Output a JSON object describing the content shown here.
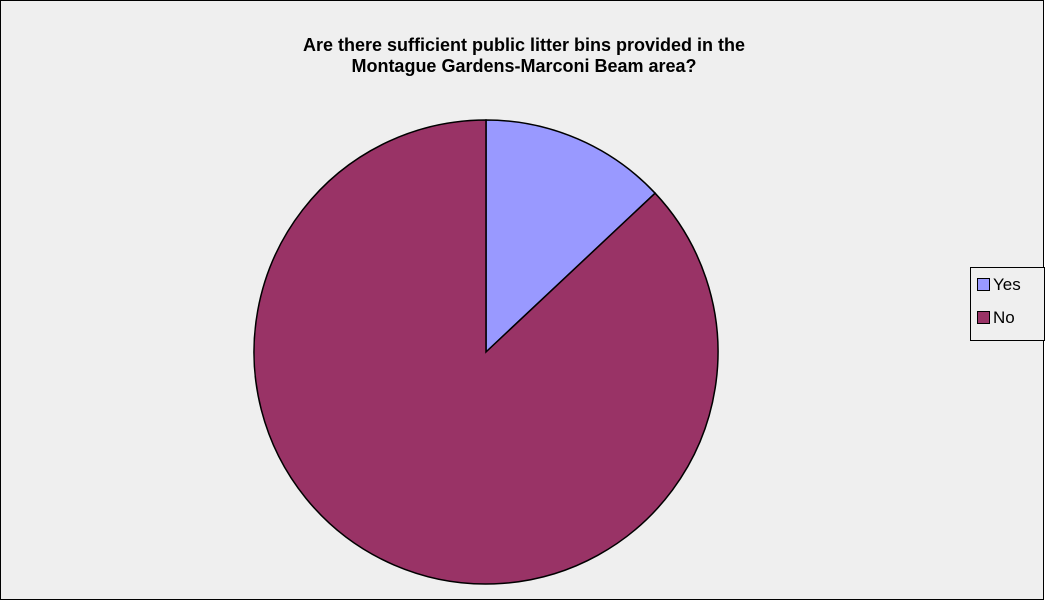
{
  "chart_data": {
    "type": "pie",
    "title_lines": [
      "Are there sufficient public litter bins provided in the",
      "Montague Gardens-Marconi Beam area?"
    ],
    "slices": [
      {
        "label": "Yes",
        "value": 13,
        "color": "#9999ff"
      },
      {
        "label": "No",
        "value": 87,
        "color": "#993366"
      }
    ],
    "legend_position": "right",
    "background_color": "#efefef"
  }
}
